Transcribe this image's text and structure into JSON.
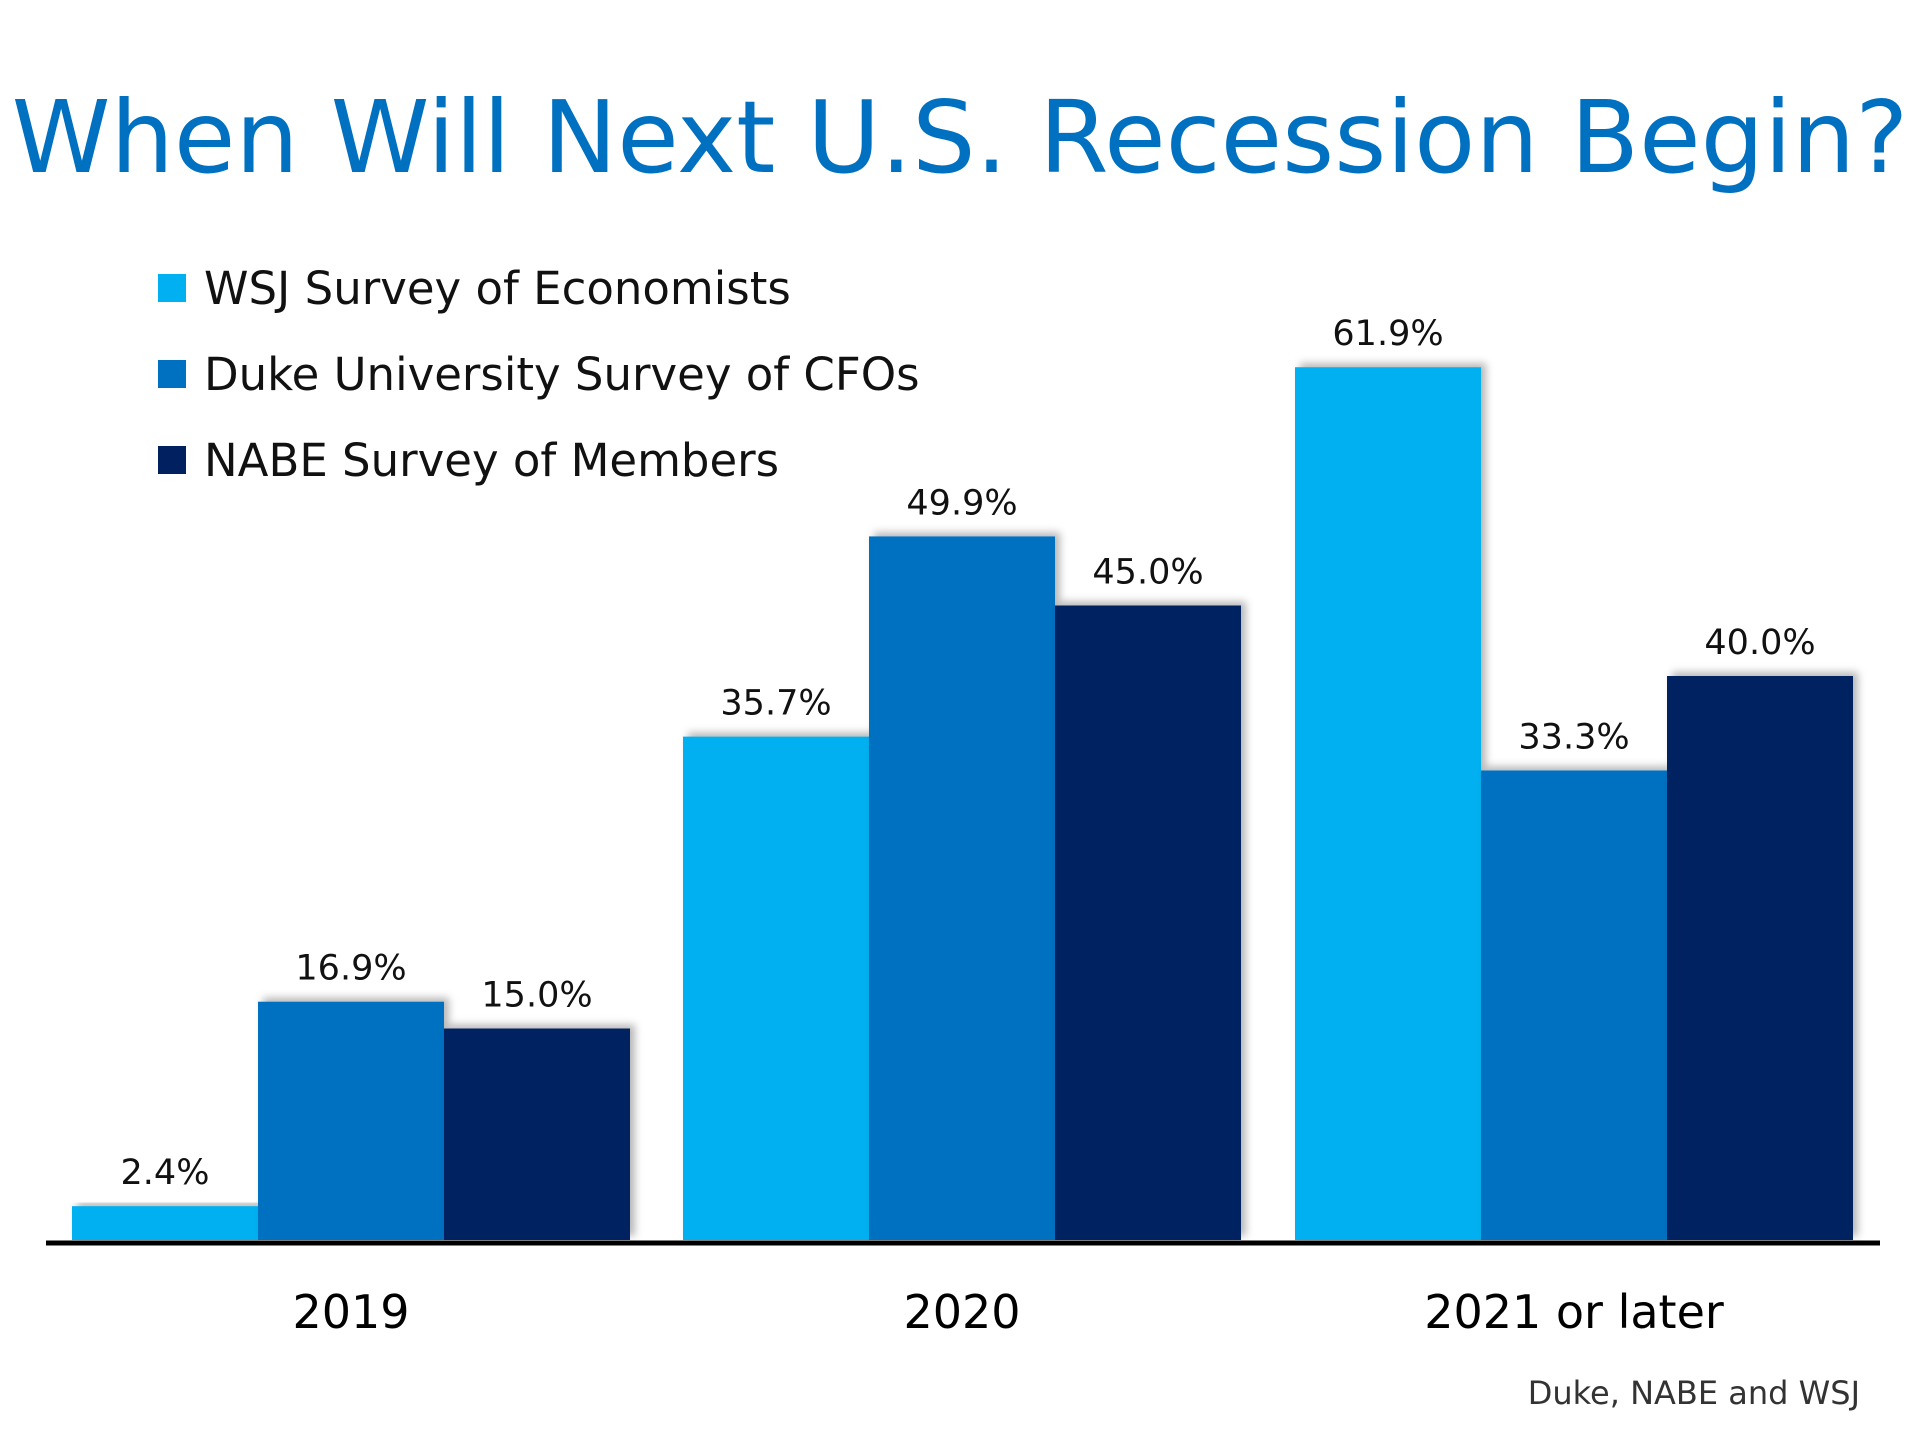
{
  "chart_data": {
    "type": "bar",
    "title": "When Will Next U.S. Recession Begin?",
    "categories": [
      "2019",
      "2020",
      "2021 or later"
    ],
    "series": [
      {
        "name": "WSJ Survey of Economists",
        "values": [
          2.4,
          35.7,
          61.9
        ],
        "labels": [
          "2.4%",
          "35.7%",
          "61.9%"
        ]
      },
      {
        "name": "Duke University Survey of CFOs",
        "values": [
          16.9,
          49.9,
          33.3
        ],
        "labels": [
          "16.9%",
          "49.9%",
          "33.3%"
        ]
      },
      {
        "name": "NABE Survey of Members",
        "values": [
          15.0,
          45.0,
          40.0
        ],
        "labels": [
          "15.0%",
          "45.0%",
          "40.0%"
        ]
      }
    ],
    "colors": [
      "#00b0f0",
      "#0070c0",
      "#002060"
    ],
    "legend_position": "top-left",
    "grid": false,
    "ylim": [
      0,
      70
    ],
    "source": "Duke, NABE and WSJ"
  }
}
